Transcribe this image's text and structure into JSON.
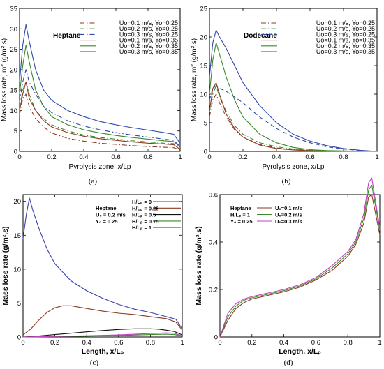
{
  "chart_data": [
    {
      "type": "line",
      "panel": "a",
      "caption": "(a)",
      "annotation": "Heptane",
      "xlabel": "Pyrolysis zone, x/Lp",
      "ylabel": "Mass loss rate, m″ (g/m².s)",
      "xlim": [
        0,
        1
      ],
      "ylim": [
        0,
        35
      ],
      "xticks": [
        "0",
        "0.2",
        "0.4",
        "0.6",
        "0.8",
        "1"
      ],
      "yticks": [
        "0",
        "5",
        "10",
        "15",
        "20",
        "25",
        "30",
        "35"
      ],
      "legend_position": "top-right",
      "series": [
        {
          "name": "Uo=0.1 m/s, Yo=0.25",
          "color": "#8b3a1e",
          "dash": "dashdot",
          "x": [
            0,
            0.02,
            0.04,
            0.06,
            0.1,
            0.15,
            0.2,
            0.3,
            0.4,
            0.5,
            0.6,
            0.7,
            0.8,
            0.9,
            0.96,
            1.0
          ],
          "y": [
            9,
            13,
            14,
            11,
            8,
            6,
            4.5,
            3.2,
            2.5,
            2.0,
            1.7,
            1.4,
            1.2,
            1.0,
            0.9,
            0.3
          ]
        },
        {
          "name": "Uo=0.2 m/s, Yo=0.25",
          "color": "#3a8a2a",
          "dash": "dashdot",
          "x": [
            0,
            0.02,
            0.04,
            0.06,
            0.1,
            0.15,
            0.2,
            0.3,
            0.4,
            0.5,
            0.6,
            0.7,
            0.8,
            0.9,
            0.96,
            1.0
          ],
          "y": [
            10,
            15,
            17,
            14,
            10,
            8,
            6.5,
            5.0,
            4.0,
            3.4,
            3.0,
            2.6,
            2.3,
            2.0,
            1.9,
            0.8
          ]
        },
        {
          "name": "Uo=0.3 m/s, Yo=0.25",
          "color": "#2f4aa8",
          "dash": "dashdot",
          "x": [
            0,
            0.02,
            0.04,
            0.06,
            0.1,
            0.15,
            0.2,
            0.3,
            0.4,
            0.5,
            0.6,
            0.7,
            0.8,
            0.9,
            0.96,
            1.0
          ],
          "y": [
            12,
            17,
            20,
            17,
            14,
            11,
            9.5,
            7.5,
            6.2,
            5.3,
            4.6,
            4.0,
            3.5,
            3.0,
            2.7,
            1.2
          ]
        },
        {
          "name": "Uo=0.1 m/s, Yo=0.35",
          "color": "#8b3a1e",
          "dash": "solid",
          "x": [
            0,
            0.02,
            0.04,
            0.06,
            0.1,
            0.15,
            0.2,
            0.3,
            0.4,
            0.5,
            0.6,
            0.7,
            0.8,
            0.9,
            0.96,
            1.0
          ],
          "y": [
            10,
            14,
            17,
            13,
            10,
            7.5,
            6.0,
            4.6,
            3.7,
            3.1,
            2.7,
            2.3,
            2.0,
            1.8,
            1.6,
            0.5
          ]
        },
        {
          "name": "Uo=0.2 m/s, Yo=0.35",
          "color": "#3a8a2a",
          "dash": "solid",
          "x": [
            0,
            0.02,
            0.04,
            0.06,
            0.1,
            0.15,
            0.2,
            0.3,
            0.4,
            0.5,
            0.6,
            0.7,
            0.8,
            0.9,
            0.96,
            1.0
          ],
          "y": [
            14,
            21,
            26,
            22,
            15,
            11,
            8.5,
            6.5,
            5.3,
            4.5,
            3.9,
            3.4,
            3.0,
            2.6,
            2.4,
            1.0
          ]
        },
        {
          "name": "Uo=0.3 m/s, Yo=0.35",
          "color": "#2f4aa8",
          "dash": "solid",
          "x": [
            0,
            0.02,
            0.04,
            0.06,
            0.1,
            0.15,
            0.2,
            0.3,
            0.4,
            0.5,
            0.6,
            0.7,
            0.8,
            0.9,
            0.96,
            1.0
          ],
          "y": [
            17,
            26,
            31,
            27,
            20,
            15,
            12.5,
            10,
            8.5,
            7.3,
            6.5,
            5.8,
            5.2,
            4.6,
            4.2,
            2.0
          ]
        }
      ]
    },
    {
      "type": "line",
      "panel": "b",
      "caption": "(b)",
      "annotation": "Dodecane",
      "xlabel": "Pyrolysis zone, x/Lp",
      "ylabel": "Mass loss rate, m″ (g/m².s)",
      "xlim": [
        0,
        1
      ],
      "ylim": [
        0,
        25
      ],
      "xticks": [
        "0",
        "0.2",
        "0.4",
        "0.6",
        "0.8",
        "1"
      ],
      "yticks": [
        "0",
        "5",
        "10",
        "15",
        "20",
        "25"
      ],
      "legend_position": "top-right",
      "series": [
        {
          "name": "Uo=0.1 m/s, Yo=0.25",
          "color": "#8b3a1e",
          "dash": "dashdot",
          "x": [
            0,
            0.02,
            0.04,
            0.06,
            0.1,
            0.15,
            0.2,
            0.3,
            0.4,
            0.5,
            0.6,
            0.7,
            0.8,
            0.9,
            1.0
          ],
          "y": [
            6,
            9,
            10,
            8.5,
            6,
            3.8,
            2.5,
            1.2,
            0.6,
            0.3,
            0.15,
            0.1,
            0.05,
            0.02,
            0
          ]
        },
        {
          "name": "Uo=0.2 m/s, Yo=0.25",
          "color": "#3a8a2a",
          "dash": "dashdot",
          "x": [
            0,
            0.02,
            0.04,
            0.06,
            0.1,
            0.15,
            0.2,
            0.3,
            0.4,
            0.5,
            0.6,
            0.7,
            0.8,
            0.9,
            1.0
          ],
          "y": [
            7,
            10,
            11.5,
            9.5,
            7,
            4.5,
            3.0,
            1.5,
            0.8,
            0.4,
            0.2,
            0.1,
            0.05,
            0.02,
            0
          ]
        },
        {
          "name": "Uo=0.3 m/s, Yo=0.25",
          "color": "#2f4aa8",
          "dash": "dash",
          "x": [
            0,
            0.02,
            0.04,
            0.06,
            0.1,
            0.15,
            0.2,
            0.3,
            0.4,
            0.5,
            0.6,
            0.7,
            0.8,
            0.9,
            1.0
          ],
          "y": [
            9,
            11,
            11.5,
            11,
            10.5,
            9.5,
            8.5,
            6.0,
            4.0,
            2.5,
            1.5,
            0.8,
            0.4,
            0.15,
            0
          ]
        },
        {
          "name": "Uo=0.1 m/s, Yo=0.35",
          "color": "#8b3a1e",
          "dash": "solid",
          "x": [
            0,
            0.02,
            0.04,
            0.06,
            0.1,
            0.15,
            0.2,
            0.3,
            0.4,
            0.5,
            0.6,
            0.7,
            0.8,
            0.9,
            1.0
          ],
          "y": [
            7,
            11,
            12,
            10,
            6.5,
            4.0,
            2.5,
            1.1,
            0.5,
            0.25,
            0.1,
            0.05,
            0.02,
            0.01,
            0
          ]
        },
        {
          "name": "Uo=0.2 m/s, Yo=0.35",
          "color": "#3a8a2a",
          "dash": "solid",
          "x": [
            0,
            0.02,
            0.04,
            0.06,
            0.1,
            0.15,
            0.2,
            0.3,
            0.4,
            0.5,
            0.6,
            0.7,
            0.8,
            0.9,
            1.0
          ],
          "y": [
            10,
            16,
            19,
            17,
            13,
            9,
            6.0,
            3.0,
            1.5,
            0.7,
            0.3,
            0.15,
            0.08,
            0.03,
            0
          ]
        },
        {
          "name": "Uo=0.3 m/s, Yo=0.35",
          "color": "#2f4aa8",
          "dash": "solid",
          "x": [
            0,
            0.02,
            0.04,
            0.06,
            0.1,
            0.15,
            0.2,
            0.3,
            0.4,
            0.5,
            0.6,
            0.7,
            0.8,
            0.9,
            1.0
          ],
          "y": [
            13,
            19,
            21.2,
            20,
            18,
            15,
            12,
            8.0,
            5.0,
            3.0,
            1.8,
            1.0,
            0.5,
            0.2,
            0
          ]
        }
      ]
    },
    {
      "type": "line",
      "panel": "c",
      "caption": "(c)",
      "annotation": [
        "Heptane",
        "U₀ = 0.2 m/s",
        "Y₀ = 0.25"
      ],
      "xlabel": "Length, x/Lₚ",
      "ylabel": "Mass loss rate (g/m².s)",
      "xlim": [
        0,
        1
      ],
      "ylim": [
        0,
        21
      ],
      "xticks": [
        "0",
        "0.2",
        "0.4",
        "0.6",
        "0.8",
        "1"
      ],
      "yticks": [
        "0",
        "5",
        "10",
        "15",
        "20"
      ],
      "legend_position": "top-right",
      "series": [
        {
          "name": "H/Lₚ = 0",
          "color": "#3a3fa8",
          "dash": "solid",
          "x": [
            0,
            0.02,
            0.04,
            0.06,
            0.1,
            0.15,
            0.2,
            0.3,
            0.4,
            0.5,
            0.6,
            0.7,
            0.8,
            0.9,
            0.96,
            1.0
          ],
          "y": [
            14.5,
            18,
            20.5,
            18.8,
            16,
            13,
            10.8,
            8.3,
            6.8,
            5.7,
            4.8,
            4.1,
            3.6,
            3.0,
            2.6,
            1.2
          ]
        },
        {
          "name": "H/Lₚ = 0.25",
          "color": "#8b3a1e",
          "dash": "solid",
          "x": [
            0,
            0.05,
            0.1,
            0.15,
            0.2,
            0.25,
            0.3,
            0.4,
            0.5,
            0.6,
            0.7,
            0.8,
            0.9,
            0.96,
            1.0
          ],
          "y": [
            0.3,
            1.2,
            2.5,
            3.6,
            4.3,
            4.6,
            4.6,
            4.2,
            3.8,
            3.5,
            3.3,
            3.0,
            2.7,
            2.2,
            1.0
          ]
        },
        {
          "name": "H/Lₚ = 0.5",
          "color": "#111111",
          "dash": "solid",
          "x": [
            0,
            0.1,
            0.2,
            0.3,
            0.4,
            0.5,
            0.6,
            0.7,
            0.8,
            0.85,
            0.9,
            0.95,
            1.0
          ],
          "y": [
            0,
            0.15,
            0.35,
            0.55,
            0.75,
            0.95,
            1.1,
            1.2,
            1.2,
            1.15,
            1.0,
            0.8,
            0.3
          ]
        },
        {
          "name": "H/Lₚ = 0.75",
          "color": "#3a8a2a",
          "dash": "solid",
          "x": [
            0,
            0.2,
            0.4,
            0.6,
            0.8,
            0.9,
            0.95,
            1.0
          ],
          "y": [
            0,
            0.05,
            0.12,
            0.22,
            0.35,
            0.4,
            0.35,
            0.1
          ]
        },
        {
          "name": "H/Lₚ = 1",
          "color": "#c040c0",
          "dash": "solid",
          "x": [
            0,
            0.2,
            0.4,
            0.6,
            0.8,
            0.9,
            0.95,
            1.0
          ],
          "y": [
            0,
            0.08,
            0.18,
            0.3,
            0.5,
            0.6,
            0.55,
            0.15
          ]
        }
      ]
    },
    {
      "type": "line",
      "panel": "d",
      "caption": "(d)",
      "annotation": [
        "Heptane",
        "H/Lₚ = 1",
        "Y₀ = 0.25"
      ],
      "xlabel": "Length, x/Lₚ",
      "ylabel": "Mass loss rate (g/m².s)",
      "xlim": [
        0,
        1
      ],
      "ylim": [
        0,
        0.6
      ],
      "xticks": [
        "0",
        "0.2",
        "0.4",
        "0.6",
        "0.8",
        "1"
      ],
      "yticks": [
        "0",
        "0.2",
        "0.4",
        "0.6"
      ],
      "legend_position": "top-left",
      "series": [
        {
          "name": "U₀=0.1 m/s",
          "color": "#8b3a1e",
          "dash": "solid",
          "x": [
            0,
            0.05,
            0.1,
            0.15,
            0.2,
            0.3,
            0.4,
            0.5,
            0.6,
            0.7,
            0.8,
            0.85,
            0.9,
            0.93,
            0.95,
            1.0
          ],
          "y": [
            0,
            0.07,
            0.12,
            0.145,
            0.16,
            0.175,
            0.19,
            0.21,
            0.24,
            0.28,
            0.34,
            0.39,
            0.48,
            0.59,
            0.6,
            0.43
          ]
        },
        {
          "name": "U₀=0.2 m/s",
          "color": "#3a8a2a",
          "dash": "solid",
          "x": [
            0,
            0.05,
            0.1,
            0.15,
            0.2,
            0.3,
            0.4,
            0.5,
            0.6,
            0.7,
            0.8,
            0.85,
            0.9,
            0.93,
            0.95,
            1.0
          ],
          "y": [
            0,
            0.085,
            0.13,
            0.155,
            0.165,
            0.18,
            0.195,
            0.215,
            0.245,
            0.29,
            0.35,
            0.4,
            0.5,
            0.62,
            0.64,
            0.45
          ]
        },
        {
          "name": "U₀=0.3 m/s",
          "color": "#c040c0",
          "dash": "solid",
          "x": [
            0,
            0.05,
            0.1,
            0.15,
            0.2,
            0.3,
            0.4,
            0.5,
            0.6,
            0.7,
            0.8,
            0.85,
            0.9,
            0.93,
            0.95,
            1.0
          ],
          "y": [
            0,
            0.1,
            0.14,
            0.16,
            0.17,
            0.185,
            0.2,
            0.22,
            0.25,
            0.3,
            0.36,
            0.41,
            0.52,
            0.65,
            0.67,
            0.46
          ]
        }
      ]
    }
  ]
}
